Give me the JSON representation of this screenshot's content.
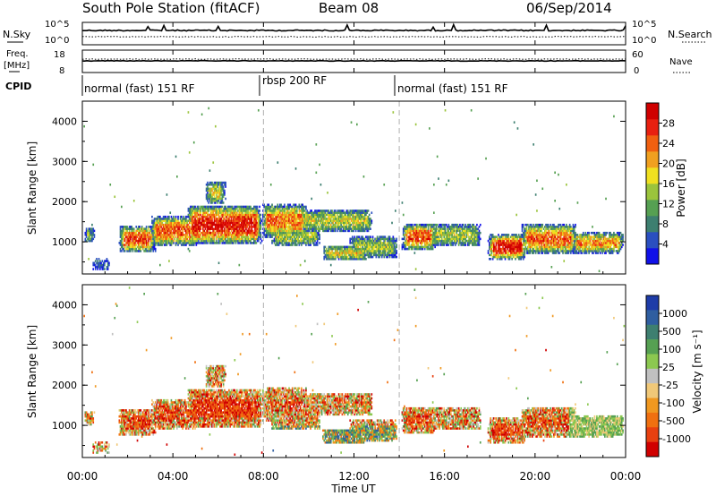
{
  "header": {
    "station": "South Pole Station (fitACF)",
    "beam": "Beam 08",
    "date": "06/Sep/2014"
  },
  "colors": {
    "power_scale": [
      "#1010e8",
      "#2a4fc0",
      "#3d7f70",
      "#56a052",
      "#9bc43c",
      "#f0e020",
      "#f0a020",
      "#f06010",
      "#e82010",
      "#d00000"
    ],
    "velocity_scale": [
      "#1e3ca8",
      "#2f5ea0",
      "#3e7f70",
      "#56a052",
      "#8cc850",
      "#c0c0c0",
      "#f0c878",
      "#f09820",
      "#f07010",
      "#e84010",
      "#d00000"
    ]
  },
  "chart_data": [
    {
      "type": "line",
      "name": "noise-panel",
      "left_labels": [
        "N.Sky"
      ],
      "right_labels": [
        "N.Search"
      ],
      "left_ticks": [
        "10^5",
        "10^0"
      ],
      "right_ticks": [
        "10^5",
        "10^0"
      ]
    },
    {
      "type": "line",
      "name": "frequency-panel",
      "left_labels": [
        "Freq.",
        "[MHz]"
      ],
      "right_labels": [
        "Nave"
      ],
      "left_ticks": [
        "18",
        "8"
      ],
      "right_ticks": [
        "60",
        "0"
      ]
    },
    {
      "type": "table",
      "name": "cpid-strip",
      "label": "CPID",
      "modes": [
        {
          "start": 0,
          "end": 8,
          "label": "normal (fast) 151 RF"
        },
        {
          "start": 8,
          "end": 14,
          "label": "rbsp 200 RF"
        },
        {
          "start": 14,
          "end": 24,
          "label": "normal (fast) 151 RF"
        }
      ]
    },
    {
      "type": "heatmap",
      "name": "power-panel",
      "ylabel": "Slant Range [km]",
      "yticks": [
        "1000",
        "2000",
        "3000",
        "4000"
      ],
      "ylim": [
        200,
        4500
      ],
      "colorbar_label": "Power [dB]",
      "colorbar_ticks": [
        "4",
        "8",
        "12",
        "16",
        "20",
        "24",
        "28"
      ],
      "markers_hours": [
        8,
        14
      ]
    },
    {
      "type": "heatmap",
      "name": "velocity-panel",
      "ylabel": "Slant Range [km]",
      "yticks": [
        "1000",
        "2000",
        "3000",
        "4000"
      ],
      "ylim": [
        200,
        4500
      ],
      "colorbar_label": "Velocity [m s⁻¹]",
      "colorbar_ticks": [
        "1000",
        "500",
        "100",
        "25",
        "-25",
        "-100",
        "-500",
        "-1000"
      ],
      "markers_hours": [
        8,
        14
      ]
    }
  ],
  "xaxis": {
    "label": "Time UT",
    "ticks": [
      "00:00",
      "04:00",
      "08:00",
      "12:00",
      "16:00",
      "20:00",
      "00:00"
    ],
    "range_hours": [
      0,
      24
    ]
  }
}
